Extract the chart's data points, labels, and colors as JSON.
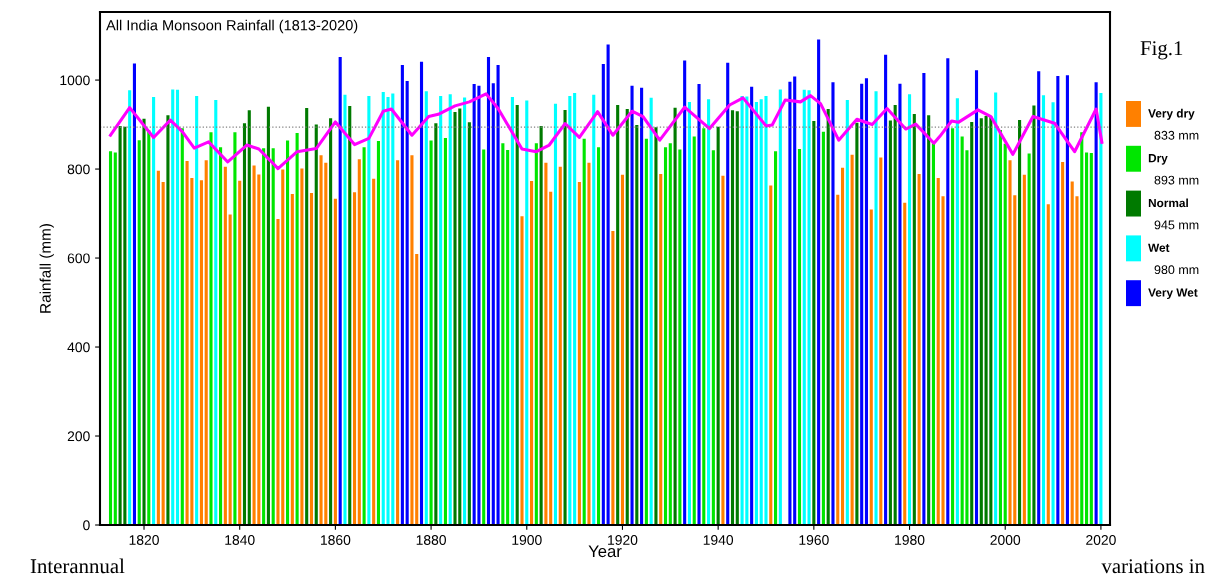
{
  "chart_data": {
    "type": "bar",
    "title": "All India Monsoon Rainfall (1813-2020)",
    "xlabel": "Year",
    "ylabel": "Rainfall (mm)",
    "xlim": [
      1810.8,
      2021.9
    ],
    "xticks": [
      1820,
      1840,
      1860,
      1880,
      1900,
      1920,
      1940,
      1960,
      1980,
      2000,
      2020
    ],
    "ylim": [
      0,
      1153
    ],
    "yticks": [
      0,
      200,
      400,
      600,
      800,
      1000
    ],
    "grid": false,
    "legend": "right",
    "ref_lines": [
      {
        "axis": "y",
        "value": 894,
        "color": "#808080",
        "line_style": "dotted"
      }
    ],
    "annotations": [
      "Fig.1",
      "833 mm",
      "893 mm",
      "945 mm",
      "980 mm",
      "Interannual variations in"
    ],
    "series": [
      {
        "name": "Very dry",
        "color": "#ff8000",
        "x": [
          1823,
          1824,
          1829,
          1830,
          1832,
          1833,
          1837,
          1838,
          1840,
          1843,
          1844,
          1848,
          1849,
          1851,
          1853,
          1855,
          1857,
          1858,
          1860,
          1864,
          1865,
          1868,
          1873,
          1876,
          1877,
          1899,
          1901,
          1904,
          1905,
          1907,
          1911,
          1913,
          1918,
          1920,
          1928,
          1941,
          1951,
          1965,
          1966,
          1968,
          1972,
          1974,
          1979,
          1982,
          1986,
          1987,
          2001,
          2002,
          2004,
          2009,
          2012,
          2014,
          2015
        ],
        "values": [
          796,
          771,
          818,
          780,
          775,
          820,
          805,
          698,
          774,
          808,
          788,
          688,
          799,
          744,
          801,
          746,
          831,
          814,
          733,
          748,
          822,
          778,
          820,
          831,
          609,
          694,
          773,
          814,
          749,
          805,
          771,
          814,
          661,
          787,
          789,
          785,
          763,
          742,
          803,
          832,
          709,
          826,
          724,
          789,
          780,
          739,
          820,
          741,
          787,
          721,
          816,
          772,
          739
        ]
      },
      {
        "name": "Dry",
        "color": "#00e600",
        "x": [
          1813,
          1814,
          1819,
          1821,
          1828,
          1834,
          1836,
          1839,
          1845,
          1847,
          1850,
          1852,
          1866,
          1869,
          1880,
          1883,
          1891,
          1895,
          1896,
          1902,
          1912,
          1915,
          1925,
          1929,
          1930,
          1932,
          1935,
          1937,
          1939,
          1952,
          1957,
          1962,
          1985,
          1989,
          1991,
          1992,
          1999,
          2000,
          2005,
          2016,
          2017,
          2018
        ],
        "values": [
          840,
          837,
          865,
          887,
          892,
          883,
          849,
          883,
          847,
          847,
          864,
          881,
          849,
          863,
          864,
          870,
          844,
          858,
          843,
          858,
          868,
          849,
          868,
          849,
          858,
          844,
          873,
          892,
          842,
          840,
          845,
          884,
          858,
          892,
          873,
          842,
          888,
          857,
          835,
          883,
          837,
          836
        ]
      },
      {
        "name": "Normal",
        "color": "#007a00",
        "x": [
          1815,
          1816,
          1820,
          1825,
          1841,
          1842,
          1846,
          1854,
          1856,
          1859,
          1863,
          1881,
          1885,
          1886,
          1888,
          1898,
          1903,
          1908,
          1919,
          1921,
          1923,
          1927,
          1931,
          1940,
          1943,
          1944,
          1960,
          1963,
          1969,
          1976,
          1977,
          1981,
          1984,
          1993,
          1995,
          1996,
          1997,
          2003,
          2006
        ],
        "values": [
          897,
          895,
          913,
          921,
          903,
          932,
          940,
          937,
          900,
          914,
          942,
          903,
          928,
          936,
          905,
          944,
          897,
          933,
          944,
          935,
          899,
          894,
          938,
          895,
          932,
          930,
          908,
          935,
          904,
          909,
          944,
          924,
          921,
          906,
          914,
          919,
          918,
          910,
          943
        ]
      },
      {
        "name": "Wet",
        "color": "#00ffff",
        "x": [
          1817,
          1822,
          1826,
          1827,
          1831,
          1835,
          1862,
          1867,
          1870,
          1871,
          1872,
          1879,
          1882,
          1884,
          1887,
          1897,
          1900,
          1906,
          1909,
          1910,
          1914,
          1926,
          1934,
          1938,
          1945,
          1946,
          1948,
          1949,
          1950,
          1953,
          1958,
          1959,
          1967,
          1973,
          1980,
          1990,
          1998,
          2008,
          2010,
          2020
        ],
        "values": [
          977,
          962,
          979,
          978,
          964,
          955,
          967,
          964,
          973,
          962,
          970,
          975,
          964,
          968,
          961,
          962,
          954,
          947,
          964,
          971,
          967,
          960,
          951,
          957,
          964,
          963,
          951,
          957,
          964,
          979,
          978,
          977,
          955,
          975,
          968,
          959,
          972,
          966,
          950,
          971
        ]
      },
      {
        "name": "Very Wet",
        "color": "#0000ff",
        "x": [
          1818,
          1861,
          1874,
          1875,
          1878,
          1889,
          1890,
          1892,
          1893,
          1894,
          1916,
          1917,
          1922,
          1924,
          1933,
          1936,
          1942,
          1947,
          1955,
          1956,
          1961,
          1964,
          1970,
          1971,
          1975,
          1978,
          1983,
          1988,
          1994,
          2007,
          2011,
          2013,
          2019
        ],
        "values": [
          1037,
          1052,
          1034,
          998,
          1041,
          991,
          987,
          1052,
          993,
          1034,
          1036,
          1080,
          987,
          983,
          1044,
          991,
          1039,
          985,
          996,
          1008,
          1091,
          995,
          992,
          1004,
          1057,
          992,
          1016,
          1049,
          1022,
          1020,
          1009,
          1011,
          995
        ]
      },
      {
        "type": "line",
        "color": "#ff00ff",
        "x": [
          1813,
          1817,
          1822,
          1825.5,
          1828,
          1830.5,
          1833.5,
          1837.5,
          1841.5,
          1844,
          1846.5,
          1848,
          1852,
          1856,
          1860,
          1864,
          1867,
          1870,
          1871.7,
          1876,
          1879.5,
          1881.5,
          1885,
          1888,
          1891.5,
          1894,
          1899,
          1902,
          1904.7,
          1908,
          1911,
          1914.8,
          1918,
          1922,
          1924.3,
          1927.8,
          1933,
          1938.2,
          1942.4,
          1945.2,
          1950,
          1951.3,
          1954,
          1957.2,
          1959.3,
          1961.4,
          1965.2,
          1969,
          1972.2,
          1975.3,
          1979.2,
          1981.3,
          1985.1,
          1986.3,
          1988.8,
          1990.2,
          1994.3,
          1997,
          2001.6,
          2005.8,
          2010.3,
          2014.5,
          2019,
          2020.2
        ],
        "values": [
          876,
          938,
          871,
          910,
          884,
          847,
          861,
          816,
          854,
          845,
          818,
          801,
          839,
          846,
          906,
          855,
          869,
          930,
          935,
          876,
          918,
          923,
          942,
          951,
          969,
          936,
          845,
          839,
          854,
          902,
          871,
          929,
          876,
          930,
          918,
          865,
          939,
          891,
          944,
          960,
          897,
          899,
          955,
          951,
          965,
          947,
          865,
          912,
          900,
          936,
          890,
          901,
          858,
          873,
          908,
          905,
          933,
          918,
          833,
          918,
          903,
          839,
          935,
          860
        ]
      }
    ]
  }
}
